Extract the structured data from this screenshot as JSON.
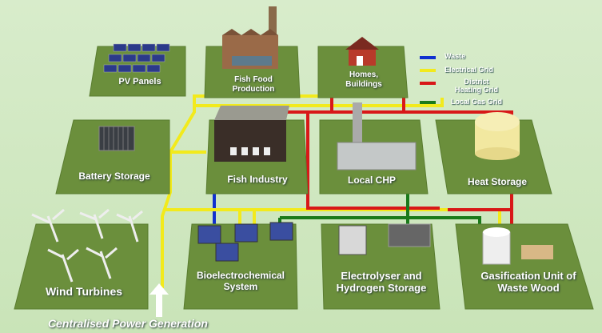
{
  "nodes": [
    {
      "label": "PV Panels"
    },
    {
      "label": "Fish Food Production"
    },
    {
      "label": "Homes, Buildings"
    },
    {
      "label": "Battery Storage"
    },
    {
      "label": "Fish Industry"
    },
    {
      "label": "Local CHP"
    },
    {
      "label": "Heat Storage"
    },
    {
      "label": "Wind Turbines"
    },
    {
      "label": "Bioelectrochemical System"
    },
    {
      "label": "Electrolyser and Hydrogen Storage"
    },
    {
      "label": "Gasification Unit of Waste Wood"
    }
  ],
  "legend": [
    {
      "name": "Waste",
      "color": "#1030d0"
    },
    {
      "name": "Electrical Grid",
      "color": "#f2ea1c"
    },
    {
      "name": "District Heating Grid",
      "color": "#d81818"
    },
    {
      "name": "Local Gas Grid",
      "color": "#1a7a1a"
    }
  ],
  "caption": "Centralised Power Generation"
}
